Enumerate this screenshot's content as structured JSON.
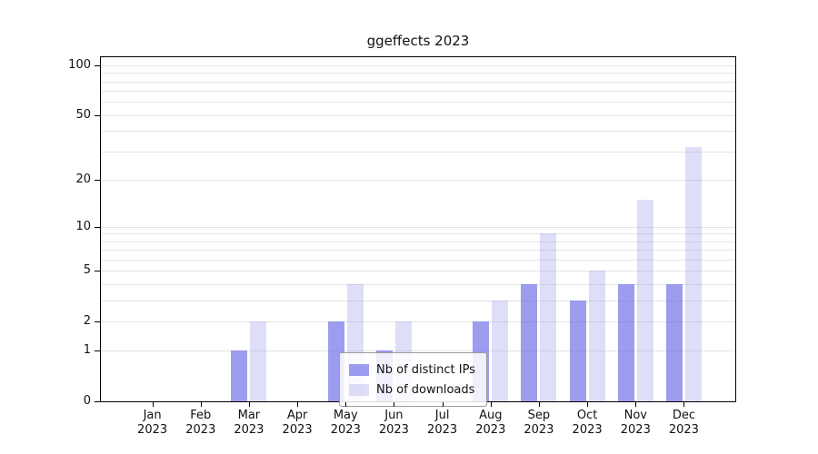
{
  "chart_data": {
    "type": "bar",
    "title": "ggeffects 2023",
    "categories": [
      "Jan",
      "Feb",
      "Mar",
      "Apr",
      "May",
      "Jun",
      "Jul",
      "Aug",
      "Sep",
      "Oct",
      "Nov",
      "Dec"
    ],
    "year_label": "2023",
    "series": [
      {
        "name": "Nb of distinct IPs",
        "color": "rgba(105,105,230,0.65)",
        "values": [
          0,
          0,
          1,
          0,
          2,
          1,
          0,
          2,
          4,
          3,
          4,
          4
        ]
      },
      {
        "name": "Nb of downloads",
        "color": "rgba(160,160,235,0.35)",
        "values": [
          0,
          0,
          2,
          0,
          4,
          2,
          0,
          3,
          9,
          5,
          15,
          32
        ]
      }
    ],
    "xlabel": "",
    "ylabel": "",
    "yscale": "log1p",
    "ylim": [
      0,
      100
    ],
    "yticks": [
      0,
      1,
      2,
      5,
      10,
      20,
      50,
      100
    ],
    "grid_values": [
      1,
      2,
      3,
      4,
      5,
      6,
      7,
      8,
      9,
      10,
      20,
      30,
      40,
      50,
      60,
      70,
      80,
      90,
      100
    ],
    "grid": true,
    "legend_position": "lower center"
  }
}
